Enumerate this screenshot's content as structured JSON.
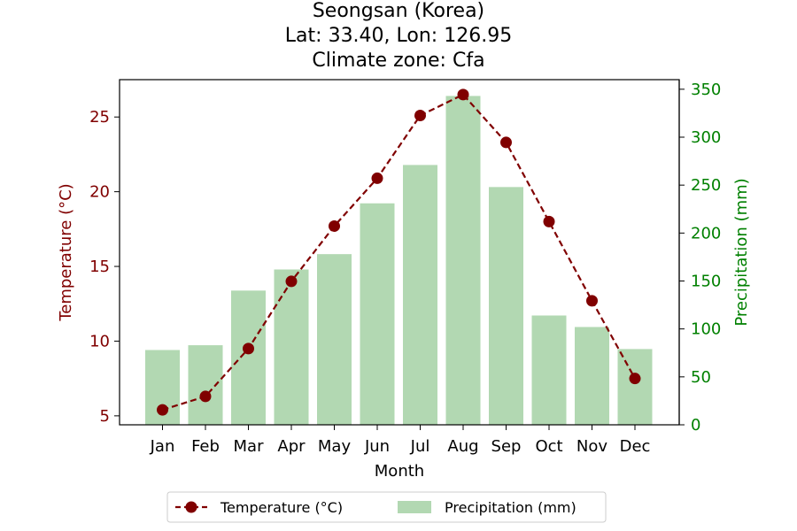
{
  "chart_data": {
    "type": "bar+line",
    "title": [
      "Seongsan (Korea)",
      "Lat: 33.40, Lon: 126.95",
      "Climate zone: Cfa"
    ],
    "categories": [
      "Jan",
      "Feb",
      "Mar",
      "Apr",
      "May",
      "Jun",
      "Jul",
      "Aug",
      "Sep",
      "Oct",
      "Nov",
      "Dec"
    ],
    "xlabel": "Month",
    "ylabel_left": "Temperature (°C)",
    "ylabel_right": "Precipitation (mm)",
    "ylim_left": [
      4.4,
      27.5
    ],
    "ylim_right": [
      0,
      360
    ],
    "yticks_left": [
      5,
      10,
      15,
      20,
      25
    ],
    "yticks_right": [
      0,
      50,
      100,
      150,
      200,
      250,
      300,
      350
    ],
    "series": [
      {
        "name": "Temperature (°C)",
        "axis": "left",
        "kind": "line",
        "values": [
          5.4,
          6.3,
          9.5,
          14.0,
          17.7,
          20.9,
          25.1,
          26.5,
          23.3,
          18.0,
          12.7,
          7.5
        ],
        "color": "#800000"
      },
      {
        "name": "Precipitation (mm)",
        "axis": "right",
        "kind": "bar",
        "values": [
          78,
          83,
          140,
          162,
          178,
          231,
          271,
          343,
          248,
          114,
          102,
          79
        ],
        "color": "#b2d8b2"
      }
    ],
    "legend": "bottom-center",
    "grid": false,
    "colors": {
      "temperature": "#800000",
      "precipitation": "#b2d8b2",
      "right_axis": "#008000"
    }
  }
}
